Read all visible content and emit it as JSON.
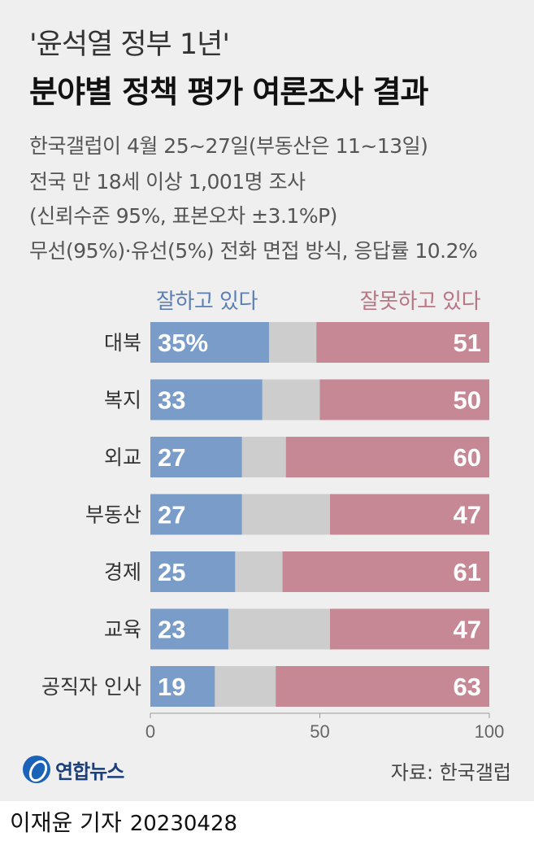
{
  "header": {
    "title_line1": "'윤석열 정부 1년'",
    "title_line2": "분야별 정책 평가 여론조사 결과",
    "subtitle_lines": [
      "한국갤럽이 4월 25~27일(부동산은 11~13일)",
      "전국 만 18세 이상 1,001명 조사",
      "(신뢰수준 95%, 표본오차 ±3.1%P)",
      "무선(95%)·유선(5%) 전화 면접 방식, 응답률 10.2%"
    ]
  },
  "colors": {
    "positive": "#7a9cc8",
    "neutral": "#cdcdcd",
    "negative": "#c68894",
    "positive_text": "#5b7fb5",
    "negative_text": "#b87583",
    "background": "#efefef"
  },
  "chart_data": {
    "type": "bar",
    "stacked": true,
    "orientation": "horizontal",
    "categories": [
      "대북",
      "복지",
      "외교",
      "부동산",
      "경제",
      "교육",
      "공직자 인사"
    ],
    "series": [
      {
        "name": "잘하고 있다",
        "values": [
          35,
          33,
          27,
          27,
          25,
          23,
          19
        ]
      },
      {
        "name": "잘못하고 있다",
        "values": [
          51,
          50,
          60,
          47,
          61,
          47,
          63
        ]
      }
    ],
    "first_value_label": "35%",
    "xlim": [
      0,
      100
    ],
    "x_ticks": [
      "0",
      "50",
      "100"
    ]
  },
  "footer": {
    "logo_text": "연합뉴스",
    "source": "자료: 한국갤럽",
    "byline": "이재윤 기자",
    "date": "20230428"
  }
}
